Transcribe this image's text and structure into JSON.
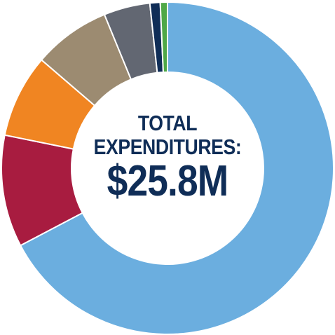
{
  "center": {
    "line1": "TOTAL",
    "line2": "EXPENDITURES:",
    "amount": "$25.8M"
  },
  "chart_data": {
    "type": "pie",
    "variant": "donut",
    "title": "",
    "start_angle_deg": 0,
    "direction": "clockwise",
    "slices": [
      {
        "label": "",
        "value": 67.3,
        "color": "#6baedf"
      },
      {
        "label": "",
        "value": 10.9,
        "color": "#a81c40"
      },
      {
        "label": "",
        "value": 8.1,
        "color": "#f08522"
      },
      {
        "label": "",
        "value": 7.5,
        "color": "#9c8b71"
      },
      {
        "label": "",
        "value": 4.5,
        "color": "#626772"
      },
      {
        "label": "",
        "value": 1.0,
        "color": "#0f2d57"
      },
      {
        "label": "",
        "value": 0.7,
        "color": "#4fa847"
      }
    ]
  }
}
